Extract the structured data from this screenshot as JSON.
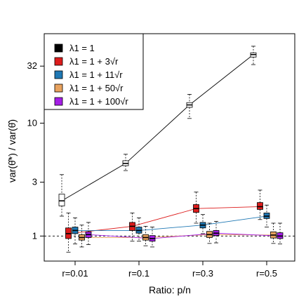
{
  "chart_data": {
    "type": "box",
    "xlabel": "Ratio: p/n",
    "ylabel": "var(θ̂*) / var(θ̂)",
    "y_scale": "log",
    "ylim": [
      0.6,
      62
    ],
    "y_ticks": [
      1,
      3,
      10,
      32
    ],
    "y_tick_labels": [
      "1",
      "3",
      "10",
      "32"
    ],
    "categories": [
      "r=0.01",
      "r=0.1",
      "r=0.3",
      "r=0.5"
    ],
    "reference_line": 1,
    "legend": {
      "position": "top-left",
      "entries": [
        "λ1 = 1",
        "λ1 = 1 + 3√r",
        "λ1 = 1 + 11√r",
        "λ1 = 1 + 50√r",
        "λ1 = 1 + 100√r"
      ]
    },
    "series": [
      {
        "name": "λ1 = 1",
        "color": "#ffffff",
        "medians": [
          2.05,
          4.4,
          14.5,
          40.5
        ],
        "q1": [
          1.85,
          4.2,
          13.8,
          38.5
        ],
        "q3": [
          2.35,
          4.65,
          15.2,
          42.0
        ],
        "whisker_low": [
          1.5,
          3.8,
          11.0,
          33.0
        ],
        "whisker_high": [
          3.5,
          5.3,
          18.0,
          48.0
        ]
      },
      {
        "name": "λ1 = 1 + 3√r",
        "color": "#dd1c1c",
        "medians": [
          1.05,
          1.22,
          1.75,
          1.82
        ],
        "q1": [
          0.95,
          1.12,
          1.62,
          1.72
        ],
        "q3": [
          1.18,
          1.32,
          1.9,
          1.98
        ],
        "whisker_low": [
          0.72,
          0.9,
          1.3,
          1.4
        ],
        "whisker_high": [
          1.6,
          1.6,
          2.45,
          2.55
        ]
      },
      {
        "name": "λ1 = 1 + 11√r",
        "color": "#1f78b4",
        "medians": [
          1.12,
          1.12,
          1.25,
          1.5
        ],
        "q1": [
          1.05,
          1.06,
          1.18,
          1.43
        ],
        "q3": [
          1.2,
          1.2,
          1.32,
          1.6
        ],
        "whisker_low": [
          0.85,
          0.9,
          1.05,
          1.2
        ],
        "whisker_high": [
          1.45,
          1.45,
          1.55,
          1.88
        ]
      },
      {
        "name": "λ1 = 1 + 50√r",
        "color": "#e8a25e",
        "medians": [
          0.97,
          0.97,
          1.03,
          1.02
        ],
        "q1": [
          0.92,
          0.92,
          0.97,
          0.96
        ],
        "q3": [
          1.03,
          1.03,
          1.1,
          1.09
        ],
        "whisker_low": [
          0.8,
          0.82,
          0.86,
          0.86
        ],
        "whisker_high": [
          1.25,
          1.22,
          1.3,
          1.3
        ]
      },
      {
        "name": "λ1 = 1 + 100√r",
        "color": "#a51ee6",
        "medians": [
          1.03,
          0.95,
          1.06,
          1.0
        ],
        "q1": [
          0.97,
          0.9,
          1.01,
          0.95
        ],
        "q3": [
          1.09,
          1.01,
          1.12,
          1.07
        ],
        "whisker_low": [
          0.84,
          0.8,
          0.87,
          0.85
        ],
        "whisker_high": [
          1.32,
          1.2,
          1.35,
          1.3
        ]
      }
    ]
  }
}
